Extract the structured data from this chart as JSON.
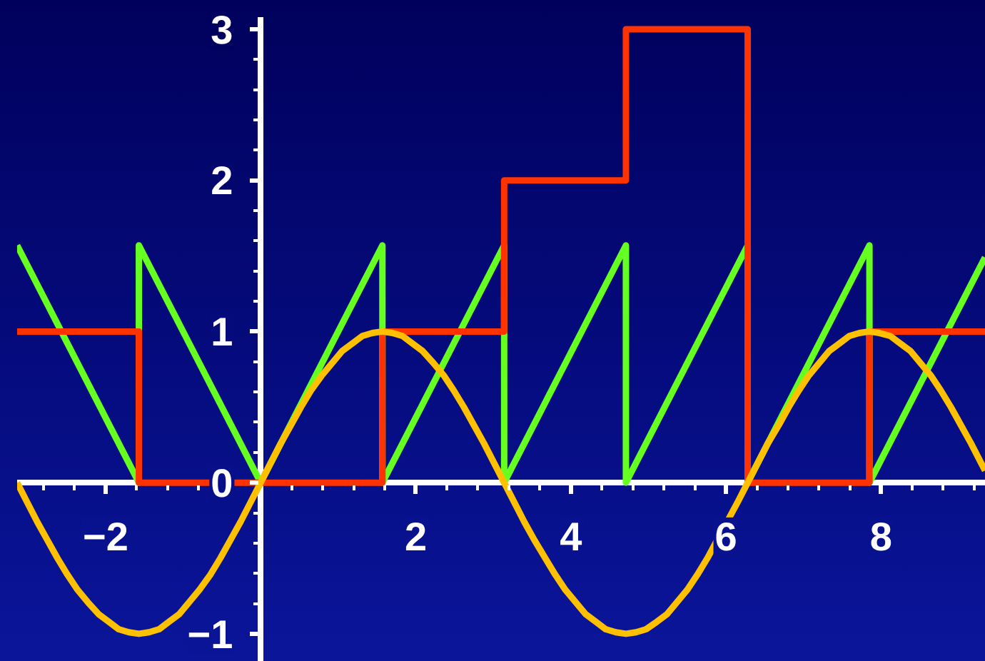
{
  "chart_data": {
    "type": "line",
    "xlim": [
      -3.14,
      9.34
    ],
    "ylim": [
      -1.18,
      3.08
    ],
    "xticks": [
      -2,
      2,
      4,
      6,
      8,
      {
        "value": -2.8,
        "label": null
      },
      {
        "value": -2.4,
        "label": null
      },
      {
        "value": -1.6,
        "label": null
      },
      {
        "value": -1.2,
        "label": null
      },
      {
        "value": -0.8,
        "label": null
      },
      {
        "value": -0.4,
        "label": null
      },
      {
        "value": 0.4,
        "label": null
      },
      {
        "value": 0.8,
        "label": null
      },
      {
        "value": 1.2,
        "label": null
      },
      {
        "value": 1.6,
        "label": null
      },
      {
        "value": 2.4,
        "label": null
      },
      {
        "value": 2.8,
        "label": null
      },
      {
        "value": 3.2,
        "label": null
      },
      {
        "value": 3.6,
        "label": null
      },
      {
        "value": 4.4,
        "label": null
      },
      {
        "value": 4.8,
        "label": null
      },
      {
        "value": 5.2,
        "label": null
      },
      {
        "value": 5.6,
        "label": null
      },
      {
        "value": 6.4,
        "label": null
      },
      {
        "value": 6.8,
        "label": null
      },
      {
        "value": 7.2,
        "label": null
      },
      {
        "value": 7.6,
        "label": null
      },
      {
        "value": 8.4,
        "label": null
      },
      {
        "value": 8.8,
        "label": null
      },
      {
        "value": 9.2,
        "label": null
      }
    ],
    "yticks": [
      -1,
      0,
      1,
      2,
      3,
      {
        "value": -0.8,
        "label": null
      },
      {
        "value": -0.6,
        "label": null
      },
      {
        "value": -0.4,
        "label": null
      },
      {
        "value": -0.2,
        "label": null
      },
      {
        "value": 0.2,
        "label": null
      },
      {
        "value": 0.4,
        "label": null
      },
      {
        "value": 0.6,
        "label": null
      },
      {
        "value": 0.8,
        "label": null
      },
      {
        "value": 1.2,
        "label": null
      },
      {
        "value": 1.4,
        "label": null
      },
      {
        "value": 1.6,
        "label": null
      },
      {
        "value": 1.8,
        "label": null
      },
      {
        "value": 2.2,
        "label": null
      },
      {
        "value": 2.4,
        "label": null
      },
      {
        "value": 2.6,
        "label": null
      },
      {
        "value": 2.8,
        "label": null
      }
    ],
    "grid": false,
    "marker": "none",
    "line_style": "solid",
    "series": [
      {
        "color": "#66ff22",
        "x": [
          -3.14,
          -1.57,
          -1.57,
          0,
          1.57,
          1.57,
          3.14,
          3.14,
          4.71,
          4.71,
          6.28,
          6.28,
          7.85,
          7.85,
          9.34
        ],
        "values": [
          1.57,
          0,
          1.57,
          0,
          1.57,
          0,
          1.57,
          0,
          1.57,
          0,
          1.57,
          0,
          1.57,
          0,
          1.49
        ]
      },
      {
        "type": "step",
        "color": "#ff3300",
        "x": [
          -3.14,
          -1.57,
          1.57,
          3.14,
          4.71,
          6.28,
          7.85,
          9.34
        ],
        "values": [
          1,
          0,
          1,
          2,
          3,
          0,
          1,
          1
        ]
      },
      {
        "color": "#ffc000",
        "x": [
          -3.14,
          -3.01,
          -2.88,
          -2.75,
          -2.62,
          -2.49,
          -2.36,
          -2.23,
          -2.09,
          -1.96,
          -1.83,
          -1.7,
          -1.57,
          -1.44,
          -1.31,
          -1.18,
          -1.05,
          -0.92,
          -0.79,
          -0.65,
          -0.52,
          -0.39,
          -0.26,
          -0.13,
          0,
          0.13,
          0.26,
          0.39,
          0.52,
          0.65,
          0.79,
          0.92,
          1.05,
          1.18,
          1.31,
          1.44,
          1.57,
          1.7,
          1.83,
          1.96,
          2.09,
          2.23,
          2.36,
          2.49,
          2.62,
          2.75,
          2.88,
          3.01,
          3.14,
          3.27,
          3.4,
          3.53,
          3.67,
          3.8,
          3.93,
          4.06,
          4.19,
          4.32,
          4.45,
          4.58,
          4.71,
          4.84,
          4.97,
          5.11,
          5.24,
          5.37,
          5.5,
          5.63,
          5.76,
          6.15,
          6.28,
          6.41,
          6.54,
          6.68,
          6.81,
          6.94,
          7.07,
          7.2,
          7.33,
          7.46,
          7.59,
          7.72,
          7.85,
          7.98,
          8.12,
          8.25,
          8.38,
          8.51,
          8.64,
          8.77,
          8.9,
          9.03,
          9.16,
          9.29,
          9.34
        ],
        "values": [
          0,
          -0.13,
          -0.26,
          -0.38,
          -0.5,
          -0.61,
          -0.71,
          -0.79,
          -0.87,
          -0.92,
          -0.97,
          -0.99,
          -1,
          -0.99,
          -0.97,
          -0.92,
          -0.87,
          -0.79,
          -0.71,
          -0.61,
          -0.5,
          -0.38,
          -0.26,
          -0.13,
          0,
          0.13,
          0.26,
          0.38,
          0.5,
          0.61,
          0.71,
          0.79,
          0.87,
          0.92,
          0.97,
          0.99,
          1,
          0.99,
          0.97,
          0.92,
          0.87,
          0.79,
          0.71,
          0.61,
          0.5,
          0.38,
          0.26,
          0.13,
          0,
          -0.13,
          -0.26,
          -0.38,
          -0.5,
          -0.61,
          -0.71,
          -0.79,
          -0.87,
          -0.92,
          -0.97,
          -0.99,
          -1,
          -0.99,
          -0.97,
          -0.92,
          -0.87,
          -0.79,
          -0.71,
          -0.61,
          -0.5,
          -0.13,
          0,
          0.13,
          0.26,
          0.38,
          0.5,
          0.61,
          0.71,
          0.79,
          0.87,
          0.92,
          0.97,
          0.99,
          1,
          0.99,
          0.97,
          0.92,
          0.87,
          0.79,
          0.71,
          0.61,
          0.5,
          0.38,
          0.26,
          0.13,
          0.08
        ]
      }
    ]
  }
}
